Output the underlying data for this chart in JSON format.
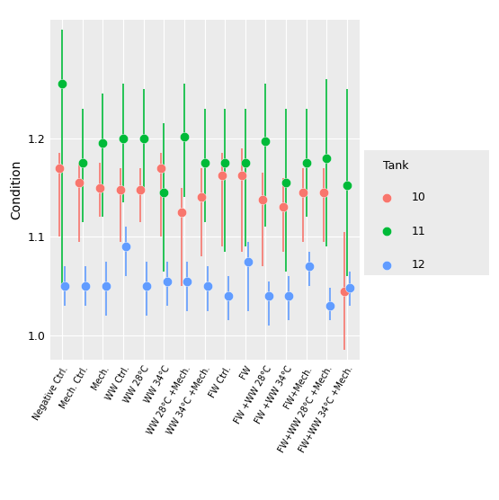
{
  "categories": [
    "Negative Ctrl.",
    "Mech. Ctrl.",
    "Mech.",
    "WW Ctrl.",
    "WW 28°C",
    "WW 34°C",
    "WW 28°C +Mech.",
    "WW 34°C +Mech.",
    "FW Ctrl.",
    "FW",
    "FW +WW 28°C",
    "FW +WW 34°C",
    "FW+Mech.",
    "FW+WW 28°C +Mech.",
    "FW+WW 34°C +Mech."
  ],
  "tanks": [
    "10",
    "11",
    "12"
  ],
  "tank_colors": {
    "10": "#F8766D",
    "11": "#00BA38",
    "12": "#619CFF"
  },
  "data": {
    "10": {
      "mean": [
        1.17,
        1.155,
        1.15,
        1.148,
        1.148,
        1.17,
        1.125,
        1.14,
        1.162,
        1.162,
        1.138,
        1.13,
        1.145,
        1.145,
        1.045
      ],
      "lower": [
        1.1,
        1.095,
        1.12,
        1.095,
        1.115,
        1.1,
        1.05,
        1.08,
        1.09,
        1.085,
        1.07,
        1.085,
        1.095,
        1.095,
        0.985
      ],
      "upper": [
        1.185,
        1.175,
        1.175,
        1.17,
        1.17,
        1.185,
        1.15,
        1.17,
        1.185,
        1.19,
        1.165,
        1.16,
        1.17,
        1.17,
        1.105
      ]
    },
    "11": {
      "mean": [
        1.255,
        1.175,
        1.195,
        1.2,
        1.2,
        1.145,
        1.202,
        1.175,
        1.175,
        1.175,
        1.197,
        1.155,
        1.175,
        1.18,
        1.152
      ],
      "lower": [
        1.05,
        1.115,
        1.12,
        1.135,
        1.15,
        1.065,
        1.14,
        1.115,
        1.085,
        1.09,
        1.11,
        1.065,
        1.12,
        1.09,
        1.06
      ],
      "upper": [
        1.31,
        1.23,
        1.245,
        1.255,
        1.25,
        1.215,
        1.255,
        1.23,
        1.23,
        1.23,
        1.255,
        1.23,
        1.23,
        1.26,
        1.25
      ]
    },
    "12": {
      "mean": [
        1.05,
        1.05,
        1.05,
        1.09,
        1.05,
        1.055,
        1.055,
        1.05,
        1.04,
        1.075,
        1.04,
        1.04,
        1.07,
        1.03,
        1.048
      ],
      "lower": [
        1.03,
        1.03,
        1.02,
        1.06,
        1.02,
        1.03,
        1.025,
        1.025,
        1.015,
        1.025,
        1.01,
        1.015,
        1.05,
        1.015,
        1.03
      ],
      "upper": [
        1.07,
        1.07,
        1.075,
        1.11,
        1.075,
        1.075,
        1.075,
        1.07,
        1.06,
        1.095,
        1.055,
        1.06,
        1.085,
        1.048,
        1.065
      ]
    }
  },
  "ylabel": "Condition",
  "ylim": [
    0.975,
    1.32
  ],
  "yticks": [
    1.0,
    1.1,
    1.2
  ],
  "bg_color": "#EBEBEB",
  "grid_color": "white",
  "legend_title": "Tank",
  "dot_size": 55,
  "offsets": [
    -0.15,
    0.0,
    0.15
  ]
}
